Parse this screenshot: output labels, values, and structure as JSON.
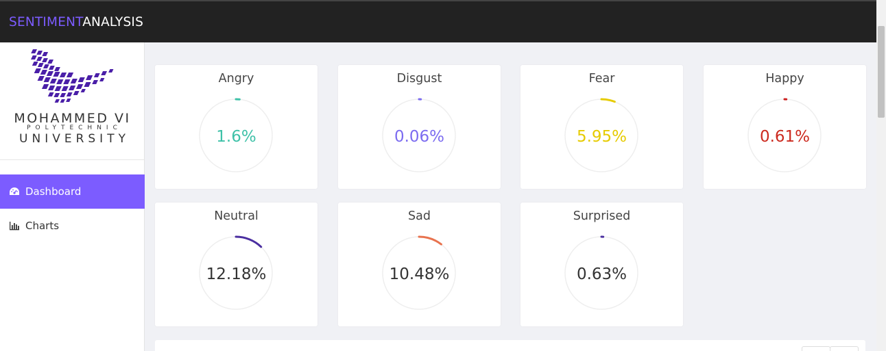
{
  "brand": {
    "part1": "SENTIMENT",
    "part2": "ANALYSIS"
  },
  "logo": {
    "line1": "MOHAMMED VI",
    "line2": "POLYTECHNIC",
    "line3": "UNIVERSITY"
  },
  "sidebar": {
    "items": [
      {
        "label": "Dashboard",
        "icon": "dashboard-icon",
        "active": true
      },
      {
        "label": "Charts",
        "icon": "bar-chart-icon",
        "active": false
      }
    ]
  },
  "emotions": [
    {
      "label": "Angry",
      "value": 1.6,
      "value_text": "1.6%",
      "color": "#3ec1a8",
      "text_color": "#3ec1a8"
    },
    {
      "label": "Disgust",
      "value": 0.06,
      "value_text": "0.06%",
      "color": "#7c6cf0",
      "text_color": "#7c6cf0"
    },
    {
      "label": "Fear",
      "value": 5.95,
      "value_text": "5.95%",
      "color": "#e6cb00",
      "text_color": "#e6cb00"
    },
    {
      "label": "Happy",
      "value": 0.61,
      "value_text": "0.61%",
      "color": "#cc1f1f",
      "text_color": "#cc2a1f"
    },
    {
      "label": "Neutral",
      "value": 12.18,
      "value_text": "12.18%",
      "color": "#4b2fa0",
      "text_color": "#333333"
    },
    {
      "label": "Sad",
      "value": 10.48,
      "value_text": "10.48%",
      "color": "#e8734f",
      "text_color": "#333333"
    },
    {
      "label": "Surprised",
      "value": 0.63,
      "value_text": "0.63%",
      "color": "#4b2fa0",
      "text_color": "#333333"
    }
  ]
}
